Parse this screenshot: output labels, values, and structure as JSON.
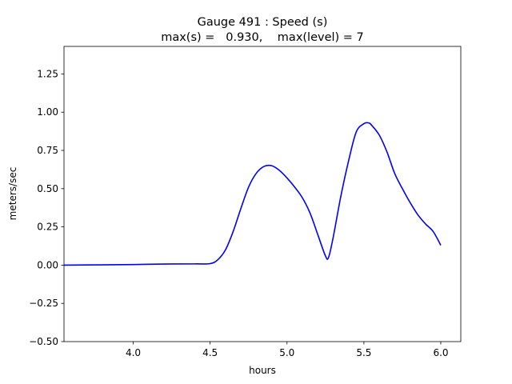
{
  "chart_data": {
    "type": "line",
    "title_line1": "Gauge 491 : Speed (s)",
    "title_line2": "max(s) =   0.930,    max(level) = 7",
    "xlabel": "hours",
    "ylabel": "meters/sec",
    "xlim": [
      3.55,
      6.13
    ],
    "ylim": [
      -0.5,
      1.43
    ],
    "x_ticks": [
      4.0,
      4.5,
      5.0,
      5.5,
      6.0
    ],
    "x_tick_labels": [
      "4.0",
      "4.5",
      "5.0",
      "5.5",
      "6.0"
    ],
    "y_ticks": [
      -0.5,
      -0.25,
      0.0,
      0.25,
      0.5,
      0.75,
      1.0,
      1.25
    ],
    "y_tick_labels": [
      "−0.50",
      "−0.25",
      "0.00",
      "0.25",
      "0.50",
      "0.75",
      "1.00",
      "1.25"
    ],
    "grid": false,
    "series": [
      {
        "color": "#0000ff",
        "x": [
          3.55,
          3.8,
          4.0,
          4.2,
          4.4,
          4.5,
          4.55,
          4.6,
          4.65,
          4.7,
          4.75,
          4.8,
          4.85,
          4.9,
          4.95,
          5.0,
          5.05,
          5.1,
          5.15,
          5.2,
          5.25,
          5.27,
          5.3,
          5.35,
          5.4,
          5.45,
          5.5,
          5.53,
          5.55,
          5.6,
          5.65,
          5.7,
          5.75,
          5.8,
          5.85,
          5.9,
          5.95,
          6.0
        ],
        "y": [
          0.0,
          0.002,
          0.004,
          0.007,
          0.008,
          0.01,
          0.035,
          0.1,
          0.22,
          0.37,
          0.51,
          0.6,
          0.645,
          0.65,
          0.62,
          0.57,
          0.51,
          0.44,
          0.34,
          0.2,
          0.06,
          0.05,
          0.18,
          0.45,
          0.68,
          0.87,
          0.925,
          0.93,
          0.915,
          0.85,
          0.74,
          0.6,
          0.5,
          0.41,
          0.33,
          0.27,
          0.22,
          0.13
        ]
      }
    ]
  }
}
